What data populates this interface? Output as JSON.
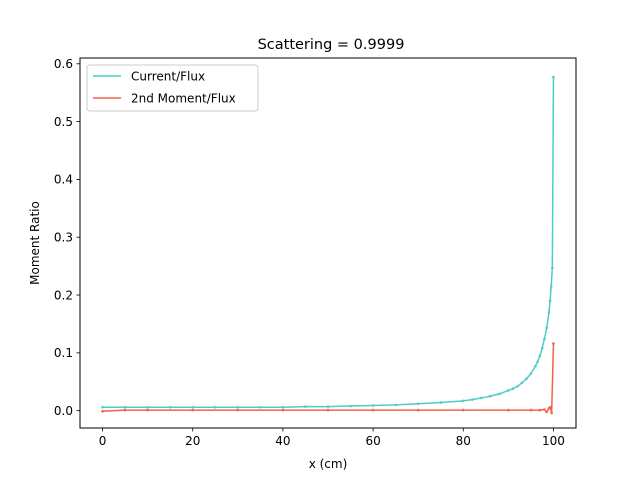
{
  "chart_data": {
    "type": "line",
    "title": "Scattering = 0.9999",
    "xlabel": "x (cm)",
    "ylabel": "Moment Ratio",
    "xlim": [
      -5,
      105
    ],
    "ylim": [
      -0.03,
      0.61
    ],
    "xticks": [
      0,
      20,
      40,
      60,
      80,
      100
    ],
    "yticks": [
      0.0,
      0.1,
      0.2,
      0.3,
      0.4,
      0.5,
      0.6
    ],
    "xtick_labels": [
      "0",
      "20",
      "40",
      "60",
      "80",
      "100"
    ],
    "ytick_labels": [
      "0.0",
      "0.1",
      "0.2",
      "0.3",
      "0.4",
      "0.5",
      "0.6"
    ],
    "grid": false,
    "legend": "top-left",
    "series": [
      {
        "name": "Current/Flux",
        "color": "#4ecdc4",
        "x": [
          0,
          5,
          10,
          15,
          20,
          25,
          30,
          35,
          40,
          45,
          50,
          55,
          60,
          65,
          70,
          75,
          80,
          82,
          84,
          86,
          88,
          90,
          91,
          92,
          93,
          94,
          95,
          96,
          96.5,
          97,
          97.5,
          98,
          98.5,
          99,
          99.25,
          99.5,
          99.75,
          100
        ],
        "values": [
          0.006,
          0.006,
          0.006,
          0.006,
          0.006,
          0.006,
          0.006,
          0.006,
          0.006,
          0.007,
          0.007,
          0.008,
          0.009,
          0.01,
          0.012,
          0.014,
          0.017,
          0.019,
          0.022,
          0.025,
          0.029,
          0.035,
          0.038,
          0.042,
          0.048,
          0.055,
          0.064,
          0.077,
          0.085,
          0.095,
          0.108,
          0.124,
          0.143,
          0.17,
          0.19,
          0.215,
          0.247,
          0.577
        ]
      },
      {
        "name": "2nd Moment/Flux",
        "color": "#f4624a",
        "x": [
          0,
          5,
          10,
          20,
          30,
          40,
          50,
          60,
          70,
          80,
          90,
          95,
          97,
          98,
          98.5,
          99,
          99.3,
          99.6,
          100
        ],
        "values": [
          -0.001,
          0.001,
          0.001,
          0.001,
          0.001,
          0.001,
          0.001,
          0.001,
          0.001,
          0.001,
          0.001,
          0.001,
          0.001,
          0.002,
          -0.002,
          0.004,
          0.006,
          -0.004,
          0.116
        ]
      }
    ]
  }
}
